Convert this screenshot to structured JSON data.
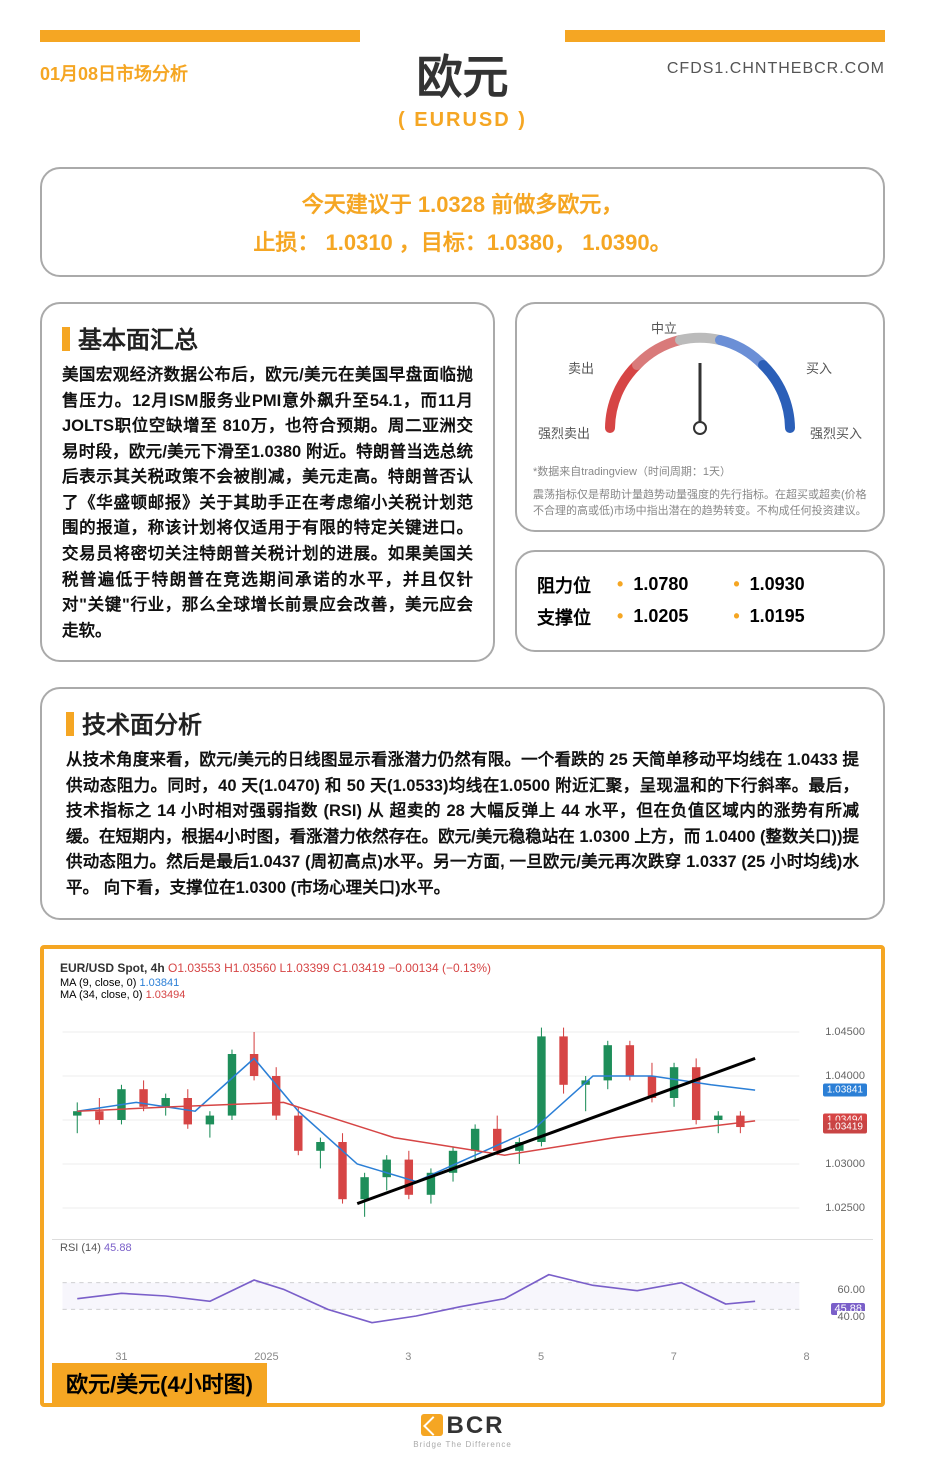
{
  "header": {
    "date": "01月08日市场分析",
    "url": "CFDS1.CHNTHEBCR.COM",
    "title": "欧元",
    "subtitle": "( EURUSD )"
  },
  "reco": {
    "line1": "今天建议于 1.0328 前做多欧元，",
    "line2": "止损： 1.0310 ，目标：1.0380， 1.0390。"
  },
  "fundamental": {
    "title": "基本面汇总",
    "body": "美国宏观经济数据公布后，欧元/美元在美国早盘面临抛售压力。12月ISM服务业PMI意外飙升至54.1，而11月JOLTS职位空缺增至 810万，也符合预期。周二亚洲交易时段，欧元/美元下滑至1.0380 附近。特朗普当选总统后表示其关税政策不会被削减，美元走高。特朗普否认了《华盛顿邮报》关于其助手正在考虑缩小关税计划范围的报道，称该计划将仅适用于有限的特定关键进口。交易员将密切关注特朗普关税计划的进展。如果美国关税普遍低于特朗普在竞选期间承诺的水平，并且仅针对\"关键\"行业，那么全球增长前景应会改善，美元应会走软。"
  },
  "gauge": {
    "labels": {
      "strong_sell": "强烈卖出",
      "sell": "卖出",
      "neutral": "中立",
      "buy": "买入",
      "strong_buy": "强烈买入"
    },
    "note1": "*数据来自tradingview（时间周期：1天）",
    "note2": "震荡指标仅是帮助计量趋势动量强度的先行指标。在超买或超卖(价格不合理的高或低)市场中指出潜在的趋势转变。不构成任何投资建议。",
    "colors": {
      "sell": "#d64545",
      "neutral": "#888",
      "buy": "#2b5fb8"
    },
    "needle_angle": 90
  },
  "levels": {
    "resistance": {
      "label": "阻力位",
      "v1": "1.0780",
      "v2": "1.0930"
    },
    "support": {
      "label": "支撑位",
      "v1": "1.0205",
      "v2": "1.0195"
    }
  },
  "technical": {
    "title": "技术面分析",
    "body": "从技术角度来看，欧元/美元的日线图显示看涨潜力仍然有限。一个看跌的 25 天简单移动平均线在 1.0433 提供动态阻力。同时，40 天(1.0470) 和 50 天(1.0533)均线在1.0500 附近汇聚，呈现温和的下行斜率。最后，技术指标之 14 小时相对强弱指数 (RSI) 从 超卖的 28 大幅反弹上 44 水平，但在负值区域内的涨势有所减缓。在短期内，根据4小时图，看涨潜力依然存在。欧元/美元稳稳站在 1.0300 上方，而 1.0400 (整数关口))提供动态阻力。然后是最后1.0437 (周初高点)水平。另一方面, 一旦欧元/美元再次跌穿 1.0337 (25 小时均线)水平。 向下看，支撑位在1.0300 (市场心理关口)水平。"
  },
  "chart": {
    "header": {
      "symbol": "EUR/USD Spot, 4h",
      "o": "O1.03553",
      "h": "H1.03560",
      "l": "L1.03399",
      "c": "C1.03419",
      "chg": "−0.00134 (−0.13%)",
      "ma1": {
        "label": "MA (9, close, 0)",
        "val": "1.03841",
        "color": "#2b7fd6"
      },
      "ma2": {
        "label": "MA (34, close, 0)",
        "val": "1.03494",
        "color": "#d64545"
      }
    },
    "y_axis": {
      "min": 1.0225,
      "max": 1.0475,
      "ticks": [
        "1.04500",
        "1.04000",
        "1.03500",
        "1.03000",
        "1.02500"
      ]
    },
    "price_tags": [
      {
        "val": "1.03841",
        "color": "#2b7fd6"
      },
      {
        "val": "1.03494",
        "color": "#d64545"
      },
      {
        "val": "1.03419",
        "color": "#c94444"
      }
    ],
    "candles": [
      {
        "x": 0.02,
        "o": 1.0355,
        "h": 1.037,
        "l": 1.0335,
        "c": 1.036,
        "up": true
      },
      {
        "x": 0.05,
        "o": 1.036,
        "h": 1.0375,
        "l": 1.0345,
        "c": 1.035,
        "up": false
      },
      {
        "x": 0.08,
        "o": 1.035,
        "h": 1.039,
        "l": 1.0345,
        "c": 1.0385,
        "up": true
      },
      {
        "x": 0.11,
        "o": 1.0385,
        "h": 1.0395,
        "l": 1.036,
        "c": 1.0365,
        "up": false
      },
      {
        "x": 0.14,
        "o": 1.0365,
        "h": 1.038,
        "l": 1.0355,
        "c": 1.0375,
        "up": true
      },
      {
        "x": 0.17,
        "o": 1.0375,
        "h": 1.0385,
        "l": 1.034,
        "c": 1.0345,
        "up": false
      },
      {
        "x": 0.2,
        "o": 1.0345,
        "h": 1.036,
        "l": 1.033,
        "c": 1.0355,
        "up": true
      },
      {
        "x": 0.23,
        "o": 1.0355,
        "h": 1.043,
        "l": 1.035,
        "c": 1.0425,
        "up": true
      },
      {
        "x": 0.26,
        "o": 1.0425,
        "h": 1.045,
        "l": 1.0395,
        "c": 1.04,
        "up": false
      },
      {
        "x": 0.29,
        "o": 1.04,
        "h": 1.041,
        "l": 1.035,
        "c": 1.0355,
        "up": false
      },
      {
        "x": 0.32,
        "o": 1.0355,
        "h": 1.0365,
        "l": 1.031,
        "c": 1.0315,
        "up": false
      },
      {
        "x": 0.35,
        "o": 1.0315,
        "h": 1.033,
        "l": 1.0295,
        "c": 1.0325,
        "up": true
      },
      {
        "x": 0.38,
        "o": 1.0325,
        "h": 1.0335,
        "l": 1.0255,
        "c": 1.026,
        "up": false
      },
      {
        "x": 0.41,
        "o": 1.026,
        "h": 1.029,
        "l": 1.024,
        "c": 1.0285,
        "up": true
      },
      {
        "x": 0.44,
        "o": 1.0285,
        "h": 1.031,
        "l": 1.027,
        "c": 1.0305,
        "up": true
      },
      {
        "x": 0.47,
        "o": 1.0305,
        "h": 1.0315,
        "l": 1.026,
        "c": 1.0265,
        "up": false
      },
      {
        "x": 0.5,
        "o": 1.0265,
        "h": 1.0295,
        "l": 1.0255,
        "c": 1.029,
        "up": true
      },
      {
        "x": 0.53,
        "o": 1.029,
        "h": 1.032,
        "l": 1.028,
        "c": 1.0315,
        "up": true
      },
      {
        "x": 0.56,
        "o": 1.0315,
        "h": 1.0345,
        "l": 1.0305,
        "c": 1.034,
        "up": true
      },
      {
        "x": 0.59,
        "o": 1.034,
        "h": 1.0355,
        "l": 1.031,
        "c": 1.0315,
        "up": false
      },
      {
        "x": 0.62,
        "o": 1.0315,
        "h": 1.033,
        "l": 1.03,
        "c": 1.0325,
        "up": true
      },
      {
        "x": 0.65,
        "o": 1.0325,
        "h": 1.0455,
        "l": 1.032,
        "c": 1.0445,
        "up": true
      },
      {
        "x": 0.68,
        "o": 1.0445,
        "h": 1.0455,
        "l": 1.038,
        "c": 1.039,
        "up": false
      },
      {
        "x": 0.71,
        "o": 1.039,
        "h": 1.04,
        "l": 1.036,
        "c": 1.0395,
        "up": true
      },
      {
        "x": 0.74,
        "o": 1.0395,
        "h": 1.044,
        "l": 1.0385,
        "c": 1.0435,
        "up": true
      },
      {
        "x": 0.77,
        "o": 1.0435,
        "h": 1.044,
        "l": 1.0395,
        "c": 1.04,
        "up": false
      },
      {
        "x": 0.8,
        "o": 1.04,
        "h": 1.0415,
        "l": 1.037,
        "c": 1.0375,
        "up": false
      },
      {
        "x": 0.83,
        "o": 1.0375,
        "h": 1.0415,
        "l": 1.0365,
        "c": 1.041,
        "up": true
      },
      {
        "x": 0.86,
        "o": 1.041,
        "h": 1.042,
        "l": 1.0345,
        "c": 1.035,
        "up": false
      },
      {
        "x": 0.89,
        "o": 1.035,
        "h": 1.036,
        "l": 1.0335,
        "c": 1.0355,
        "up": true
      },
      {
        "x": 0.92,
        "o": 1.0355,
        "h": 1.036,
        "l": 1.0335,
        "c": 1.0342,
        "up": false
      }
    ],
    "ma9": [
      [
        0.02,
        1.036
      ],
      [
        0.1,
        1.037
      ],
      [
        0.18,
        1.036
      ],
      [
        0.26,
        1.042
      ],
      [
        0.32,
        1.036
      ],
      [
        0.4,
        1.03
      ],
      [
        0.48,
        1.028
      ],
      [
        0.56,
        1.031
      ],
      [
        0.64,
        1.034
      ],
      [
        0.72,
        1.04
      ],
      [
        0.8,
        1.04
      ],
      [
        0.88,
        1.039
      ],
      [
        0.94,
        1.0384
      ]
    ],
    "ma34": [
      [
        0.02,
        1.036
      ],
      [
        0.15,
        1.0365
      ],
      [
        0.3,
        1.037
      ],
      [
        0.45,
        1.033
      ],
      [
        0.6,
        1.031
      ],
      [
        0.75,
        1.033
      ],
      [
        0.94,
        1.0349
      ]
    ],
    "trendline": [
      [
        0.4,
        1.0255
      ],
      [
        0.94,
        1.042
      ]
    ],
    "x_labels": [
      "31",
      "2025",
      "3",
      "5",
      "7",
      "8"
    ],
    "rsi": {
      "label": "RSI (14)",
      "val": "45.88",
      "color": "#7a5fc9",
      "ticks": [
        "60.00",
        "45.88",
        "40.00"
      ],
      "series": [
        [
          0.02,
          48
        ],
        [
          0.08,
          52
        ],
        [
          0.14,
          50
        ],
        [
          0.2,
          46
        ],
        [
          0.26,
          62
        ],
        [
          0.3,
          55
        ],
        [
          0.36,
          40
        ],
        [
          0.42,
          30
        ],
        [
          0.48,
          35
        ],
        [
          0.54,
          42
        ],
        [
          0.6,
          48
        ],
        [
          0.66,
          66
        ],
        [
          0.72,
          58
        ],
        [
          0.78,
          54
        ],
        [
          0.84,
          60
        ],
        [
          0.9,
          44
        ],
        [
          0.94,
          46
        ]
      ]
    },
    "caption": "欧元/美元(4小时图)",
    "colors": {
      "up": "#1e8e5a",
      "down": "#d64545",
      "grid": "#eee",
      "trend": "#000"
    }
  },
  "footer": {
    "brand": "BCR",
    "tagline": "Bridge The Difference"
  }
}
